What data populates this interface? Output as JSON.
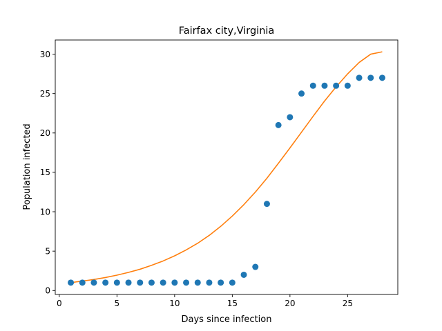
{
  "chart_data": {
    "type": "scatter",
    "title": "Fairfax city,Virginia",
    "xlabel": "Days since infection",
    "ylabel": "Population infected",
    "xlim": [
      -0.35,
      29.35
    ],
    "ylim": [
      -0.5,
      31.8
    ],
    "xticks": [
      0,
      5,
      10,
      15,
      20,
      25
    ],
    "yticks": [
      0,
      5,
      10,
      15,
      20,
      25,
      30
    ],
    "grid": false,
    "legend": "none",
    "series": [
      {
        "kind": "scatter",
        "color": "#1f77b4",
        "x": [
          1,
          2,
          3,
          4,
          5,
          6,
          7,
          8,
          9,
          10,
          11,
          12,
          13,
          14,
          15,
          16,
          17,
          18,
          19,
          20,
          21,
          22,
          23,
          24,
          25,
          26,
          27,
          28
        ],
        "y": [
          1,
          1,
          1,
          1,
          1,
          1,
          1,
          1,
          1,
          1,
          1,
          1,
          1,
          1,
          1,
          2,
          3,
          11,
          21,
          22,
          25,
          26,
          26,
          26,
          26,
          27,
          27,
          27
        ]
      },
      {
        "kind": "line",
        "color": "#ff7f0e",
        "x": [
          1,
          2,
          3,
          4,
          5,
          6,
          7,
          8,
          9,
          10,
          11,
          12,
          13,
          14,
          15,
          16,
          17,
          18,
          19,
          20,
          21,
          22,
          23,
          24,
          25,
          26,
          27,
          28
        ],
        "y": [
          1.0,
          1.2,
          1.4,
          1.65,
          1.95,
          2.3,
          2.7,
          3.2,
          3.75,
          4.4,
          5.15,
          6.0,
          7.0,
          8.15,
          9.45,
          10.9,
          12.5,
          14.25,
          16.15,
          18.1,
          20.1,
          22.1,
          24.05,
          25.85,
          27.5,
          28.95,
          30.0,
          30.3
        ]
      }
    ]
  }
}
